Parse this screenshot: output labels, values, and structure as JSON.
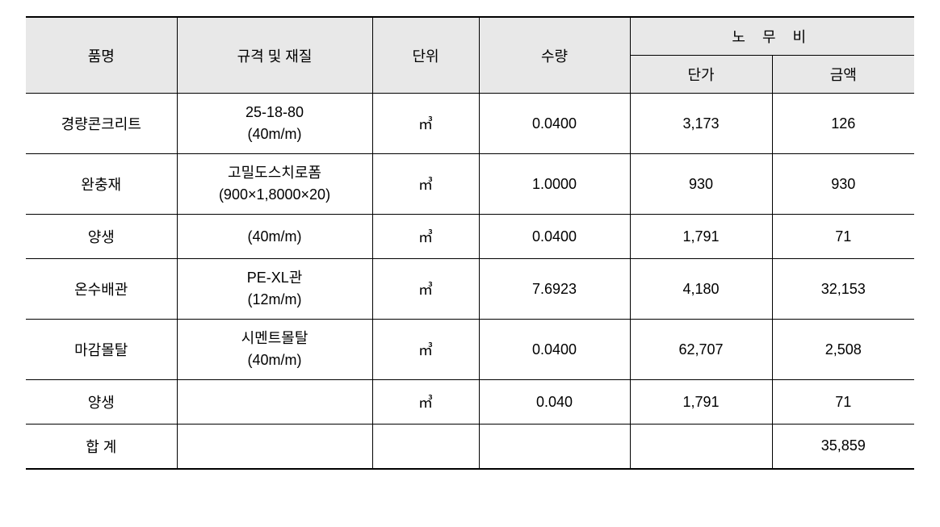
{
  "table": {
    "headers": {
      "name": "품명",
      "spec": "규격 및 재질",
      "unit": "단위",
      "qty": "수량",
      "labor": "노 무 비",
      "unit_price": "단가",
      "amount": "금액"
    },
    "rows": [
      {
        "name": "경량콘크리트",
        "spec_line1": "25-18-80",
        "spec_line2": "(40m/m)",
        "unit": "㎥",
        "qty": "0.0400",
        "unit_price": "3,173",
        "amount": "126"
      },
      {
        "name": "완충재",
        "spec_line1": "고밀도스치로폼",
        "spec_line2": "(900×1,8000×20)",
        "unit": "㎥",
        "qty": "1.0000",
        "unit_price": "930",
        "amount": "930"
      },
      {
        "name": "양생",
        "spec_line1": "(40m/m)",
        "spec_line2": "",
        "unit": "㎥",
        "qty": "0.0400",
        "unit_price": "1,791",
        "amount": "71"
      },
      {
        "name": "온수배관",
        "spec_line1": "PE-XL관",
        "spec_line2": "(12m/m)",
        "unit": "㎥",
        "qty": "7.6923",
        "unit_price": "4,180",
        "amount": "32,153"
      },
      {
        "name": "마감몰탈",
        "spec_line1": "시멘트몰탈",
        "spec_line2": "(40m/m)",
        "unit": "㎥",
        "qty": "0.0400",
        "unit_price": "62,707",
        "amount": "2,508"
      },
      {
        "name": "양생",
        "spec_line1": "",
        "spec_line2": "",
        "unit": "㎥",
        "qty": "0.040",
        "unit_price": "1,791",
        "amount": "71"
      }
    ],
    "total": {
      "label": "합 계",
      "amount": "35,859"
    },
    "styling": {
      "header_bg": "#e8e8e8",
      "border_color": "#000000",
      "background_color": "#ffffff",
      "font_size": 18,
      "border_top_width": 2,
      "border_bottom_width": 2
    }
  }
}
